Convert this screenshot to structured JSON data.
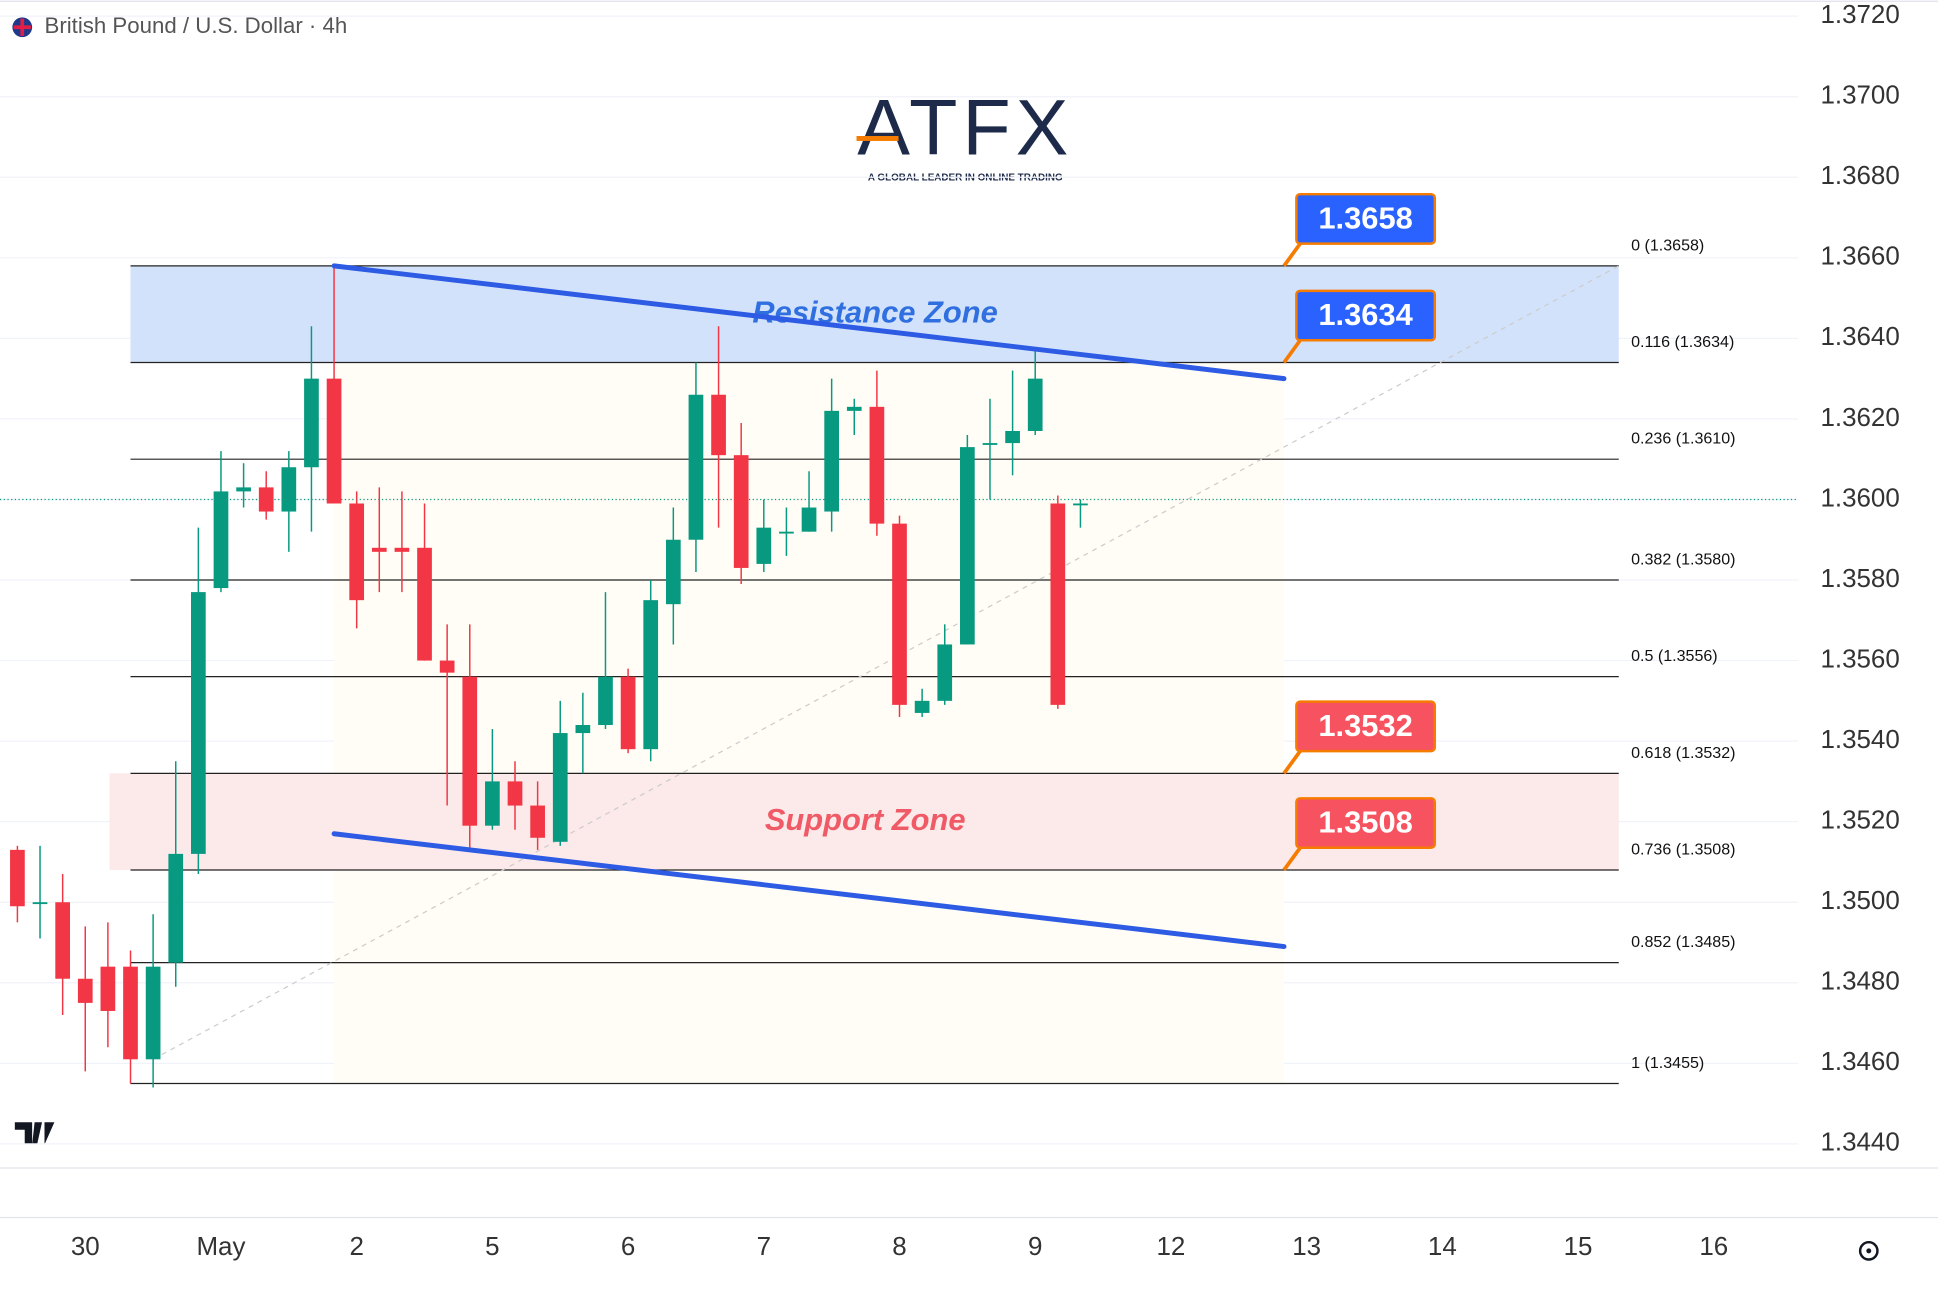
{
  "chart_data": {
    "type": "candlestick",
    "title": "British Pound / U.S. Dollar · 4h",
    "logo": {
      "name": "ATFX",
      "tagline": "A GLOBAL LEADER IN ONLINE TRADING"
    },
    "open": [
      1.3513,
      1.35,
      1.35,
      1.3481,
      1.3484,
      1.3484,
      1.3461,
      1.3485,
      1.3512,
      1.3578,
      1.3602,
      1.3603,
      1.3597,
      1.3608,
      1.363,
      1.3599,
      1.3588,
      1.3588,
      1.3588,
      1.356,
      1.3556,
      1.3519,
      1.353,
      1.3524,
      1.3515,
      1.3542,
      1.3544,
      1.3556,
      1.3538,
      1.3574,
      1.359,
      1.3626,
      1.3611,
      1.3584,
      1.3592,
      1.3592,
      1.3597,
      1.3622,
      1.3623,
      1.3594,
      1.3547,
      1.355,
      1.3564,
      1.3614,
      1.3614,
      1.3617,
      1.3599,
      1.3599
    ],
    "high": [
      1.3514,
      1.3514,
      1.3507,
      1.3494,
      1.3495,
      1.3488,
      1.3497,
      1.3535,
      1.3593,
      1.3612,
      1.3609,
      1.3607,
      1.3612,
      1.3643,
      1.3658,
      1.3602,
      1.3603,
      1.3602,
      1.3599,
      1.3569,
      1.3569,
      1.3543,
      1.3535,
      1.353,
      1.355,
      1.3552,
      1.3577,
      1.3558,
      1.358,
      1.3598,
      1.3634,
      1.3643,
      1.3619,
      1.36,
      1.3598,
      1.3607,
      1.363,
      1.3625,
      1.3632,
      1.3596,
      1.3553,
      1.3569,
      1.3616,
      1.3625,
      1.3632,
      1.3637,
      1.3601,
      1.36
    ],
    "low": [
      1.3495,
      1.3491,
      1.3472,
      1.3458,
      1.3464,
      1.3455,
      1.3454,
      1.3479,
      1.3507,
      1.3577,
      1.3598,
      1.3595,
      1.3587,
      1.3592,
      1.3599,
      1.3568,
      1.3577,
      1.3577,
      1.356,
      1.3524,
      1.3513,
      1.3518,
      1.3518,
      1.3513,
      1.3514,
      1.3532,
      1.3543,
      1.3537,
      1.3535,
      1.3564,
      1.3582,
      1.3593,
      1.3579,
      1.3582,
      1.3586,
      1.3592,
      1.3592,
      1.3616,
      1.3591,
      1.3546,
      1.3546,
      1.3549,
      1.3564,
      1.36,
      1.3606,
      1.3616,
      1.3548,
      1.3593
    ],
    "close": [
      1.3499,
      1.35,
      1.3481,
      1.3475,
      1.3473,
      1.3461,
      1.3484,
      1.3512,
      1.3577,
      1.3602,
      1.3603,
      1.3597,
      1.3608,
      1.363,
      1.3599,
      1.3575,
      1.3587,
      1.3587,
      1.356,
      1.3557,
      1.3519,
      1.353,
      1.3524,
      1.3516,
      1.3542,
      1.3544,
      1.3556,
      1.3538,
      1.3575,
      1.359,
      1.3626,
      1.3611,
      1.3583,
      1.3593,
      1.3592,
      1.3598,
      1.3622,
      1.3623,
      1.3594,
      1.3549,
      1.355,
      1.3564,
      1.3613,
      1.3614,
      1.3617,
      1.363,
      1.3549,
      1.3599
    ],
    "up_color": "#089981",
    "down_color": "#f23645",
    "xlim": [
      -0.77,
      78.74
    ],
    "xticks": [
      {
        "value": 3,
        "label": "30"
      },
      {
        "value": 9,
        "label": "May"
      },
      {
        "value": 15,
        "label": "2"
      },
      {
        "value": 21,
        "label": "5"
      },
      {
        "value": 27,
        "label": "6"
      },
      {
        "value": 33,
        "label": "7"
      },
      {
        "value": 39,
        "label": "8"
      },
      {
        "value": 45,
        "label": "9"
      },
      {
        "value": 51,
        "label": "12"
      },
      {
        "value": 57,
        "label": "13"
      },
      {
        "value": 63,
        "label": "14"
      },
      {
        "value": 69,
        "label": "15"
      },
      {
        "value": 75,
        "label": "16"
      }
    ],
    "ylim": [
      1.3434,
      1.3724
    ],
    "yticks": [
      {
        "value": 1.372,
        "label": "1.3720"
      },
      {
        "value": 1.37,
        "label": "1.3700"
      },
      {
        "value": 1.368,
        "label": "1.3680"
      },
      {
        "value": 1.366,
        "label": "1.3660"
      },
      {
        "value": 1.364,
        "label": "1.3640"
      },
      {
        "value": 1.362,
        "label": "1.3620"
      },
      {
        "value": 1.36,
        "label": "1.3600"
      },
      {
        "value": 1.358,
        "label": "1.3580"
      },
      {
        "value": 1.356,
        "label": "1.3560"
      },
      {
        "value": 1.354,
        "label": "1.3540"
      },
      {
        "value": 1.352,
        "label": "1.3520"
      },
      {
        "value": 1.35,
        "label": "1.3500"
      },
      {
        "value": 1.348,
        "label": "1.3480"
      },
      {
        "value": 1.346,
        "label": "1.3460"
      },
      {
        "value": 1.344,
        "label": "1.3440"
      }
    ],
    "grid": true,
    "last_price": 1.36,
    "fib": {
      "x_range": [
        5,
        70.8
      ],
      "levels": [
        {
          "value": 1.3658,
          "label": "0 (1.3658)"
        },
        {
          "value": 1.3634,
          "label": "0.116 (1.3634)"
        },
        {
          "value": 1.361,
          "label": "0.236 (1.3610)"
        },
        {
          "value": 1.358,
          "label": "0.382 (1.3580)"
        },
        {
          "value": 1.3556,
          "label": "0.5 (1.3556)"
        },
        {
          "value": 1.3532,
          "label": "0.618 (1.3532)"
        },
        {
          "value": 1.3508,
          "label": "0.736 (1.3508)"
        },
        {
          "value": 1.3485,
          "label": "0.852 (1.3485)"
        },
        {
          "value": 1.3455,
          "label": "1 (1.3455)"
        }
      ]
    },
    "zones": [
      {
        "label": "Resistance Zone",
        "range": [
          1.3634,
          1.3658
        ],
        "color": "#d3e2fb",
        "text_color": "#2f6fe0"
      },
      {
        "label": "Support Zone",
        "range": [
          1.3508,
          1.3532
        ],
        "color": "#fce9ea",
        "text_color": "#f05a66"
      }
    ],
    "trend_lines": [
      {
        "x": [
          14,
          56
        ],
        "y": [
          1.3658,
          1.363
        ]
      },
      {
        "x": [
          14,
          56
        ],
        "y": [
          1.3517,
          1.3489
        ]
      }
    ],
    "trend_color": "#2d5be3",
    "diagonal": {
      "x": [
        6,
        70.8
      ],
      "y": [
        1.3461,
        1.3658
      ]
    },
    "price_tags": [
      {
        "value": 1.3658,
        "color": "#2962ff"
      },
      {
        "value": 1.3634,
        "color": "#2962ff"
      },
      {
        "value": 1.3532,
        "color": "#f7525f"
      },
      {
        "value": 1.3508,
        "color": "#f7525f"
      }
    ]
  }
}
